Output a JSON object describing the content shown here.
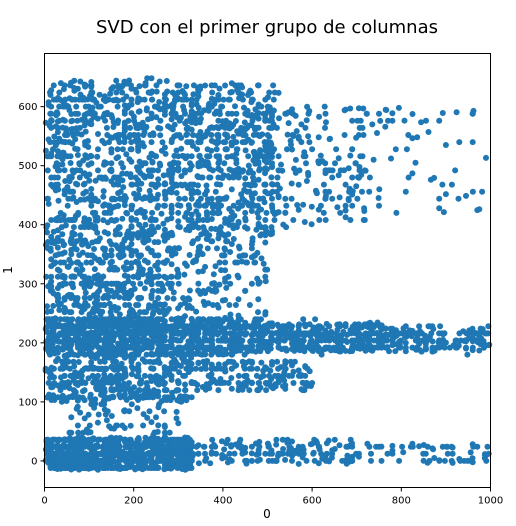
{
  "chart_data": {
    "type": "scatter",
    "title": "SVD con el primer grupo de columnas",
    "xlabel": "0",
    "ylabel": "1",
    "xlim": [
      0,
      1000
    ],
    "ylim": [
      -45,
      690
    ],
    "xticks": [
      0,
      200,
      400,
      600,
      800,
      1000
    ],
    "yticks": [
      0,
      100,
      200,
      300,
      400,
      500,
      600
    ],
    "grid": false,
    "legend": "none",
    "marker_color": "#1f77b4",
    "series": [
      {
        "description_note": "",
        "clusters": [
          {
            "x": [
              0,
              360
            ],
            "y": [
              375,
              645
            ],
            "density": "very-high"
          },
          {
            "x": [
              360,
              520
            ],
            "y": [
              375,
              640
            ],
            "density": "high"
          },
          {
            "x": [
              520,
              720
            ],
            "y": [
              400,
              600
            ],
            "density": "medium"
          },
          {
            "x": [
              720,
              1000
            ],
            "y": [
              420,
              600
            ],
            "density": "low"
          },
          {
            "x": [
              0,
              270
            ],
            "y": [
              235,
              375
            ],
            "density": "high"
          },
          {
            "x": [
              270,
              500
            ],
            "y": [
              240,
              370
            ],
            "density": "medium"
          },
          {
            "x": [
              0,
              430
            ],
            "y": [
              180,
              240
            ],
            "density": "very-high"
          },
          {
            "x": [
              430,
              760
            ],
            "y": [
              185,
              235
            ],
            "density": "high"
          },
          {
            "x": [
              760,
              1000
            ],
            "y": [
              185,
              225
            ],
            "density": "medium"
          },
          {
            "x": [
              0,
              330
            ],
            "y": [
              100,
              180
            ],
            "density": "high"
          },
          {
            "x": [
              330,
              600
            ],
            "y": [
              120,
              170
            ],
            "density": "medium"
          },
          {
            "x": [
              50,
              300
            ],
            "y": [
              40,
              100
            ],
            "density": "low"
          },
          {
            "x": [
              0,
              330
            ],
            "y": [
              -15,
              40
            ],
            "density": "very-high"
          },
          {
            "x": [
              330,
              700
            ],
            "y": [
              -5,
              35
            ],
            "density": "medium"
          },
          {
            "x": [
              700,
              1000
            ],
            "y": [
              -5,
              30
            ],
            "density": "low"
          }
        ]
      }
    ]
  }
}
